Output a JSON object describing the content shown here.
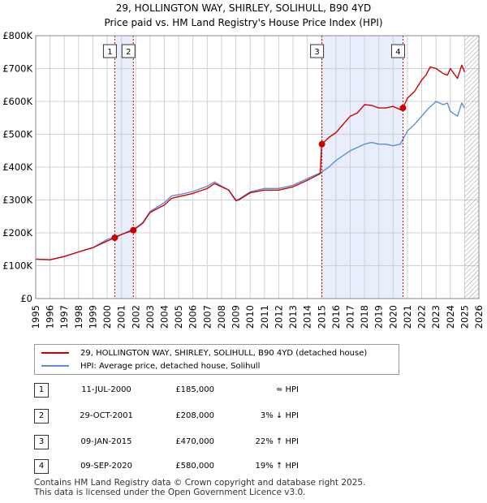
{
  "title_line1": "29, HOLLINGTON WAY, SHIRLEY, SOLIHULL, B90 4YD",
  "title_line2": "Price paid vs. HM Land Registry's House Price Index (HPI)",
  "colors": {
    "property": "#cc0000",
    "hpi": "#5b8fd6",
    "shade": "#e8eefb",
    "grid": "#d0d0d0"
  },
  "legend": {
    "property_label": "29, HOLLINGTON WAY, SHIRLEY, SOLIHULL, B90 4YD (detached house)",
    "hpi_label": "HPI: Average price, detached house, Solihull"
  },
  "transactions": [
    {
      "num": "1",
      "date": "11-JUL-2000",
      "price": "£185,000",
      "hpi": "≈ HPI"
    },
    {
      "num": "2",
      "date": "29-OCT-2001",
      "price": "£208,000",
      "hpi": "3% ↓ HPI"
    },
    {
      "num": "3",
      "date": "09-JAN-2015",
      "price": "£470,000",
      "hpi": "22% ↑ HPI"
    },
    {
      "num": "4",
      "date": "09-SEP-2020",
      "price": "£580,000",
      "hpi": "19% ↑ HPI"
    }
  ],
  "footer_line1": "Contains HM Land Registry data © Crown copyright and database right 2025.",
  "footer_line2": "This data is licensed under the Open Government Licence v3.0.",
  "chart_data": {
    "type": "line",
    "x_ticks": [
      "1995",
      "1996",
      "1997",
      "1998",
      "1999",
      "2000",
      "2001",
      "2002",
      "2003",
      "2004",
      "2005",
      "2006",
      "2007",
      "2008",
      "2009",
      "2010",
      "2011",
      "2012",
      "2013",
      "2014",
      "2015",
      "2016",
      "2017",
      "2018",
      "2019",
      "2020",
      "2021",
      "2022",
      "2023",
      "2024",
      "2025",
      "2026"
    ],
    "y_ticks": [
      "£0",
      "£100K",
      "£200K",
      "£300K",
      "£400K",
      "£500K",
      "£600K",
      "£700K",
      "£800K"
    ],
    "xlim": [
      1995,
      2026
    ],
    "ylim": [
      0,
      800000
    ],
    "grid": true,
    "legend_position": "below",
    "shaded_ranges": [
      [
        2000.53,
        2001.83
      ],
      [
        2015.02,
        2020.69
      ]
    ],
    "future_hatch_from": 2025.0,
    "markers": [
      {
        "label": "1",
        "x": 2000.53,
        "y": 185000
      },
      {
        "label": "2",
        "x": 2001.83,
        "y": 208000
      },
      {
        "label": "3",
        "x": 2015.02,
        "y": 470000
      },
      {
        "label": "4",
        "x": 2020.69,
        "y": 580000
      }
    ],
    "series": [
      {
        "name": "29, HOLLINGTON WAY, SHIRLEY, SOLIHULL, B90 4YD (detached house)",
        "x": [
          1995.0,
          1996.0,
          1997.0,
          1998.0,
          1999.0,
          2000.0,
          2000.53,
          2001.0,
          2001.83,
          2002.5,
          2003.0,
          2004.0,
          2004.5,
          2005.0,
          2006.0,
          2007.0,
          2007.5,
          2008.0,
          2008.5,
          2009.0,
          2009.2,
          2010.0,
          2011.0,
          2012.0,
          2013.0,
          2014.0,
          2014.9,
          2015.0,
          2015.02,
          2015.5,
          2016.0,
          2016.5,
          2017.0,
          2017.5,
          2018.0,
          2018.5,
          2019.0,
          2019.5,
          2020.0,
          2020.5,
          2020.69,
          2021.0,
          2021.5,
          2022.0,
          2022.3,
          2022.6,
          2023.0,
          2023.5,
          2023.8,
          2024.0,
          2024.5,
          2024.8,
          2025.0
        ],
        "y": [
          120000,
          118000,
          128000,
          142000,
          155000,
          175000,
          185000,
          195000,
          208000,
          230000,
          262000,
          285000,
          305000,
          310000,
          320000,
          335000,
          350000,
          340000,
          330000,
          298000,
          300000,
          322000,
          330000,
          330000,
          340000,
          360000,
          380000,
          470000,
          470000,
          490000,
          505000,
          530000,
          555000,
          565000,
          590000,
          588000,
          580000,
          580000,
          585000,
          575000,
          580000,
          610000,
          630000,
          665000,
          680000,
          705000,
          700000,
          685000,
          680000,
          700000,
          670000,
          710000,
          690000
        ]
      },
      {
        "name": "HPI: Average price, detached house, Solihull",
        "x": [
          1995.0,
          1996.0,
          1997.0,
          1998.0,
          1999.0,
          2000.0,
          2001.0,
          2002.0,
          2002.5,
          2003.0,
          2004.0,
          2004.5,
          2005.0,
          2006.0,
          2007.0,
          2007.5,
          2008.0,
          2008.5,
          2009.0,
          2009.2,
          2010.0,
          2011.0,
          2012.0,
          2013.0,
          2014.0,
          2015.0,
          2015.5,
          2016.0,
          2016.5,
          2017.0,
          2017.5,
          2018.0,
          2018.5,
          2019.0,
          2019.5,
          2020.0,
          2020.5,
          2021.0,
          2021.5,
          2022.0,
          2022.5,
          2023.0,
          2023.5,
          2023.8,
          2024.0,
          2024.5,
          2024.8,
          2025.0
        ],
        "y": [
          120000,
          118000,
          128000,
          142000,
          155000,
          180000,
          195000,
          215000,
          232000,
          265000,
          292000,
          312000,
          316000,
          326000,
          342000,
          355000,
          342000,
          330000,
          300000,
          302000,
          325000,
          335000,
          335000,
          345000,
          365000,
          385000,
          400000,
          420000,
          435000,
          450000,
          460000,
          470000,
          475000,
          470000,
          470000,
          465000,
          470000,
          510000,
          530000,
          555000,
          580000,
          600000,
          590000,
          595000,
          570000,
          555000,
          595000,
          580000
        ]
      }
    ]
  }
}
